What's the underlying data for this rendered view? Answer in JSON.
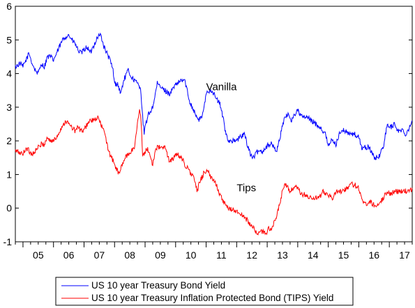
{
  "chart_data": {
    "type": "line",
    "title": "",
    "xlabel": "",
    "ylabel": "",
    "x_tick_labels": [
      "05",
      "06",
      "07",
      "08",
      "09",
      "10",
      "11",
      "12",
      "13",
      "14",
      "15",
      "16",
      "17"
    ],
    "x_range": [
      2004.75,
      2017.75
    ],
    "y_tick_labels": [
      "-1",
      "0",
      "1",
      "2",
      "3",
      "4",
      "5",
      "6"
    ],
    "ylim": [
      -1,
      6
    ],
    "grid": false,
    "legend_position": "bottom",
    "annotations": [
      {
        "text": "Vanilla",
        "x": 2011.0,
        "y": 3.5
      },
      {
        "text": "Tips",
        "x": 2012.0,
        "y": 0.5
      }
    ],
    "series": [
      {
        "name": "US 10 year Treasury Bond Yield",
        "color": "#0000ff",
        "points": [
          [
            2004.75,
            4.2
          ],
          [
            2004.9,
            4.3
          ],
          [
            2005.0,
            4.2
          ],
          [
            2005.1,
            4.4
          ],
          [
            2005.2,
            4.6
          ],
          [
            2005.3,
            4.3
          ],
          [
            2005.4,
            4.1
          ],
          [
            2005.5,
            4.0
          ],
          [
            2005.6,
            4.3
          ],
          [
            2005.7,
            4.2
          ],
          [
            2005.8,
            4.5
          ],
          [
            2005.9,
            4.5
          ],
          [
            2006.0,
            4.4
          ],
          [
            2006.1,
            4.6
          ],
          [
            2006.2,
            4.8
          ],
          [
            2006.3,
            5.0
          ],
          [
            2006.4,
            5.1
          ],
          [
            2006.5,
            5.15
          ],
          [
            2006.6,
            5.0
          ],
          [
            2006.7,
            4.9
          ],
          [
            2006.8,
            4.7
          ],
          [
            2006.9,
            4.6
          ],
          [
            2007.0,
            4.7
          ],
          [
            2007.1,
            4.8
          ],
          [
            2007.2,
            4.6
          ],
          [
            2007.3,
            4.8
          ],
          [
            2007.45,
            5.1
          ],
          [
            2007.55,
            5.15
          ],
          [
            2007.65,
            4.8
          ],
          [
            2007.75,
            4.6
          ],
          [
            2007.85,
            4.4
          ],
          [
            2007.95,
            4.1
          ],
          [
            2008.0,
            3.7
          ],
          [
            2008.1,
            3.7
          ],
          [
            2008.2,
            3.4
          ],
          [
            2008.3,
            3.8
          ],
          [
            2008.45,
            4.1
          ],
          [
            2008.55,
            3.9
          ],
          [
            2008.65,
            3.8
          ],
          [
            2008.75,
            3.7
          ],
          [
            2008.85,
            3.6
          ],
          [
            2008.92,
            2.7
          ],
          [
            2008.97,
            2.2
          ],
          [
            2009.02,
            2.5
          ],
          [
            2009.12,
            2.8
          ],
          [
            2009.25,
            3.0
          ],
          [
            2009.4,
            3.7
          ],
          [
            2009.5,
            3.6
          ],
          [
            2009.65,
            3.5
          ],
          [
            2009.8,
            3.4
          ],
          [
            2009.95,
            3.6
          ],
          [
            2010.05,
            3.7
          ],
          [
            2010.2,
            3.8
          ],
          [
            2010.3,
            3.8
          ],
          [
            2010.45,
            3.2
          ],
          [
            2010.6,
            2.9
          ],
          [
            2010.75,
            2.6
          ],
          [
            2010.9,
            2.8
          ],
          [
            2011.0,
            3.4
          ],
          [
            2011.1,
            3.5
          ],
          [
            2011.2,
            3.5
          ],
          [
            2011.3,
            3.3
          ],
          [
            2011.45,
            3.1
          ],
          [
            2011.55,
            2.7
          ],
          [
            2011.65,
            2.2
          ],
          [
            2011.75,
            2.0
          ],
          [
            2011.9,
            2.0
          ],
          [
            2012.0,
            2.0
          ],
          [
            2012.1,
            2.1
          ],
          [
            2012.25,
            2.2
          ],
          [
            2012.35,
            1.9
          ],
          [
            2012.45,
            1.6
          ],
          [
            2012.55,
            1.5
          ],
          [
            2012.7,
            1.7
          ],
          [
            2012.85,
            1.7
          ],
          [
            2012.95,
            1.8
          ],
          [
            2013.05,
            1.9
          ],
          [
            2013.15,
            1.9
          ],
          [
            2013.3,
            1.7
          ],
          [
            2013.4,
            2.0
          ],
          [
            2013.5,
            2.5
          ],
          [
            2013.6,
            2.7
          ],
          [
            2013.7,
            2.8
          ],
          [
            2013.8,
            2.6
          ],
          [
            2013.9,
            2.8
          ],
          [
            2014.0,
            2.9
          ],
          [
            2014.15,
            2.7
          ],
          [
            2014.3,
            2.7
          ],
          [
            2014.45,
            2.6
          ],
          [
            2014.6,
            2.5
          ],
          [
            2014.75,
            2.4
          ],
          [
            2014.9,
            2.2
          ],
          [
            2015.0,
            1.9
          ],
          [
            2015.1,
            2.0
          ],
          [
            2015.25,
            1.9
          ],
          [
            2015.4,
            2.3
          ],
          [
            2015.55,
            2.3
          ],
          [
            2015.7,
            2.2
          ],
          [
            2015.85,
            2.2
          ],
          [
            2016.0,
            2.1
          ],
          [
            2016.1,
            1.8
          ],
          [
            2016.2,
            1.8
          ],
          [
            2016.35,
            1.8
          ],
          [
            2016.5,
            1.5
          ],
          [
            2016.6,
            1.5
          ],
          [
            2016.7,
            1.6
          ],
          [
            2016.8,
            1.8
          ],
          [
            2016.87,
            2.2
          ],
          [
            2016.95,
            2.5
          ],
          [
            2017.05,
            2.4
          ],
          [
            2017.15,
            2.5
          ],
          [
            2017.3,
            2.3
          ],
          [
            2017.45,
            2.3
          ],
          [
            2017.55,
            2.2
          ],
          [
            2017.65,
            2.4
          ],
          [
            2017.75,
            2.6
          ]
        ]
      },
      {
        "name": "US 10 year Treasury Inflation Protected Bond (TIPS) Yield",
        "color": "#ff0000",
        "points": [
          [
            2004.75,
            1.7
          ],
          [
            2004.9,
            1.65
          ],
          [
            2005.0,
            1.6
          ],
          [
            2005.1,
            1.8
          ],
          [
            2005.2,
            1.7
          ],
          [
            2005.3,
            1.6
          ],
          [
            2005.4,
            1.7
          ],
          [
            2005.5,
            1.8
          ],
          [
            2005.6,
            1.9
          ],
          [
            2005.7,
            1.9
          ],
          [
            2005.8,
            2.1
          ],
          [
            2005.9,
            2.0
          ],
          [
            2006.0,
            2.0
          ],
          [
            2006.1,
            2.1
          ],
          [
            2006.2,
            2.3
          ],
          [
            2006.3,
            2.45
          ],
          [
            2006.4,
            2.6
          ],
          [
            2006.5,
            2.5
          ],
          [
            2006.6,
            2.4
          ],
          [
            2006.7,
            2.3
          ],
          [
            2006.8,
            2.4
          ],
          [
            2006.9,
            2.3
          ],
          [
            2007.0,
            2.3
          ],
          [
            2007.1,
            2.5
          ],
          [
            2007.2,
            2.6
          ],
          [
            2007.35,
            2.6
          ],
          [
            2007.45,
            2.7
          ],
          [
            2007.55,
            2.5
          ],
          [
            2007.65,
            2.3
          ],
          [
            2007.75,
            1.9
          ],
          [
            2007.85,
            1.6
          ],
          [
            2007.95,
            1.4
          ],
          [
            2008.05,
            1.2
          ],
          [
            2008.15,
            1.0
          ],
          [
            2008.25,
            1.3
          ],
          [
            2008.35,
            1.5
          ],
          [
            2008.45,
            1.6
          ],
          [
            2008.55,
            1.7
          ],
          [
            2008.65,
            1.8
          ],
          [
            2008.75,
            2.5
          ],
          [
            2008.82,
            3.0
          ],
          [
            2008.87,
            2.6
          ],
          [
            2008.92,
            1.5
          ],
          [
            2008.97,
            1.6
          ],
          [
            2009.05,
            1.8
          ],
          [
            2009.15,
            1.6
          ],
          [
            2009.25,
            1.3
          ],
          [
            2009.35,
            1.8
          ],
          [
            2009.5,
            1.8
          ],
          [
            2009.65,
            1.8
          ],
          [
            2009.8,
            1.4
          ],
          [
            2009.95,
            1.5
          ],
          [
            2010.05,
            1.6
          ],
          [
            2010.2,
            1.5
          ],
          [
            2010.3,
            1.3
          ],
          [
            2010.45,
            1.1
          ],
          [
            2010.6,
            0.9
          ],
          [
            2010.7,
            0.5
          ],
          [
            2010.8,
            0.8
          ],
          [
            2010.95,
            1.1
          ],
          [
            2011.05,
            1.1
          ],
          [
            2011.15,
            0.9
          ],
          [
            2011.3,
            0.8
          ],
          [
            2011.45,
            0.4
          ],
          [
            2011.55,
            0.2
          ],
          [
            2011.7,
            0.0
          ],
          [
            2011.9,
            -0.05
          ],
          [
            2012.0,
            -0.1
          ],
          [
            2012.15,
            -0.2
          ],
          [
            2012.3,
            -0.3
          ],
          [
            2012.45,
            -0.5
          ],
          [
            2012.55,
            -0.6
          ],
          [
            2012.7,
            -0.75
          ],
          [
            2012.85,
            -0.7
          ],
          [
            2012.95,
            -0.75
          ],
          [
            2013.05,
            -0.6
          ],
          [
            2013.15,
            -0.6
          ],
          [
            2013.3,
            -0.3
          ],
          [
            2013.4,
            0.1
          ],
          [
            2013.5,
            0.5
          ],
          [
            2013.6,
            0.7
          ],
          [
            2013.75,
            0.5
          ],
          [
            2013.9,
            0.6
          ],
          [
            2014.0,
            0.6
          ],
          [
            2014.1,
            0.4
          ],
          [
            2014.25,
            0.4
          ],
          [
            2014.4,
            0.3
          ],
          [
            2014.55,
            0.3
          ],
          [
            2014.7,
            0.3
          ],
          [
            2014.85,
            0.5
          ],
          [
            2015.0,
            0.4
          ],
          [
            2015.15,
            0.3
          ],
          [
            2015.3,
            0.5
          ],
          [
            2015.45,
            0.5
          ],
          [
            2015.6,
            0.6
          ],
          [
            2015.75,
            0.7
          ],
          [
            2015.85,
            0.7
          ],
          [
            2016.0,
            0.6
          ],
          [
            2016.1,
            0.3
          ],
          [
            2016.2,
            0.1
          ],
          [
            2016.35,
            0.2
          ],
          [
            2016.5,
            0.1
          ],
          [
            2016.6,
            0.1
          ],
          [
            2016.7,
            0.2
          ],
          [
            2016.8,
            0.3
          ],
          [
            2016.87,
            0.4
          ],
          [
            2016.95,
            0.5
          ],
          [
            2017.05,
            0.4
          ],
          [
            2017.15,
            0.5
          ],
          [
            2017.3,
            0.5
          ],
          [
            2017.45,
            0.5
          ],
          [
            2017.55,
            0.5
          ],
          [
            2017.65,
            0.5
          ],
          [
            2017.75,
            0.6
          ]
        ]
      }
    ]
  }
}
